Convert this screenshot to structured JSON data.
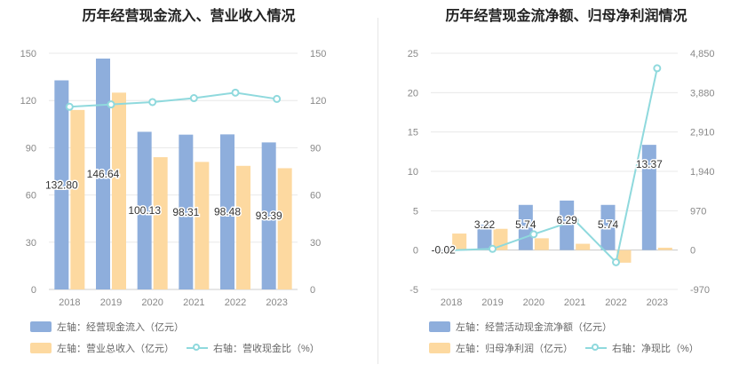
{
  "colors": {
    "bar1": "#8eaedc",
    "bar2": "#fdd9a0",
    "line": "#8fd9dd",
    "grid": "#e8e8e8",
    "axis_text": "#888888",
    "label_text": "#333333"
  },
  "chart_data": [
    {
      "type": "bar",
      "title": "历年经营现金流入、营业收入情况",
      "categories": [
        "2018",
        "2019",
        "2020",
        "2021",
        "2022",
        "2023"
      ],
      "left_axis": {
        "ylim": [
          0,
          150
        ],
        "ticks": [
          "0",
          "30",
          "60",
          "90",
          "120",
          "150"
        ]
      },
      "right_axis": {
        "ylim": [
          0,
          150
        ],
        "ticks": [
          "0",
          "30",
          "60",
          "90",
          "120",
          "150"
        ]
      },
      "series": [
        {
          "name": "左轴：经营现金流入（亿元）",
          "axis": "left",
          "kind": "bar",
          "values": [
            132.8,
            146.64,
            100.13,
            98.31,
            98.48,
            93.39
          ],
          "labels": [
            "132.80",
            "146.64",
            "100.13",
            "98.31",
            "98.48",
            "93.39"
          ]
        },
        {
          "name": "左轴：营业总收入（亿元）",
          "axis": "left",
          "kind": "bar",
          "values": [
            114,
            125,
            84,
            81,
            78.5,
            77
          ]
        },
        {
          "name": "右轴：营收现金比（%）",
          "axis": "right",
          "kind": "line",
          "values": [
            116,
            117.5,
            119,
            121.5,
            125,
            121
          ]
        }
      ]
    },
    {
      "type": "bar",
      "title": "历年经营现金流净额、归母净利润情况",
      "categories": [
        "2018",
        "2019",
        "2020",
        "2021",
        "2022",
        "2023"
      ],
      "left_axis": {
        "ylim": [
          -5,
          25
        ],
        "ticks": [
          "-5",
          "0",
          "5",
          "10",
          "15",
          "20",
          "25"
        ]
      },
      "right_axis": {
        "ylim": [
          -970,
          4850
        ],
        "ticks": [
          "-970",
          "0",
          "970",
          "1,940",
          "2,910",
          "3,880",
          "4,850"
        ]
      },
      "series": [
        {
          "name": "左轴：经营活动现金流净额（亿元）",
          "axis": "left",
          "kind": "bar",
          "values": [
            -0.02,
            3.22,
            5.74,
            6.29,
            5.74,
            13.37
          ],
          "labels": [
            "-0.02",
            "3.22",
            "5.74",
            "6.29",
            "5.74",
            "13.37"
          ]
        },
        {
          "name": "左轴：归母净利润（亿元）",
          "axis": "left",
          "kind": "bar",
          "values": [
            2.1,
            2.7,
            1.5,
            0.8,
            -1.6,
            0.3
          ]
        },
        {
          "name": "右轴：净现比（%）",
          "axis": "right",
          "kind": "line",
          "values": [
            -5,
            30,
            390,
            730,
            -300,
            4480
          ]
        }
      ]
    }
  ]
}
